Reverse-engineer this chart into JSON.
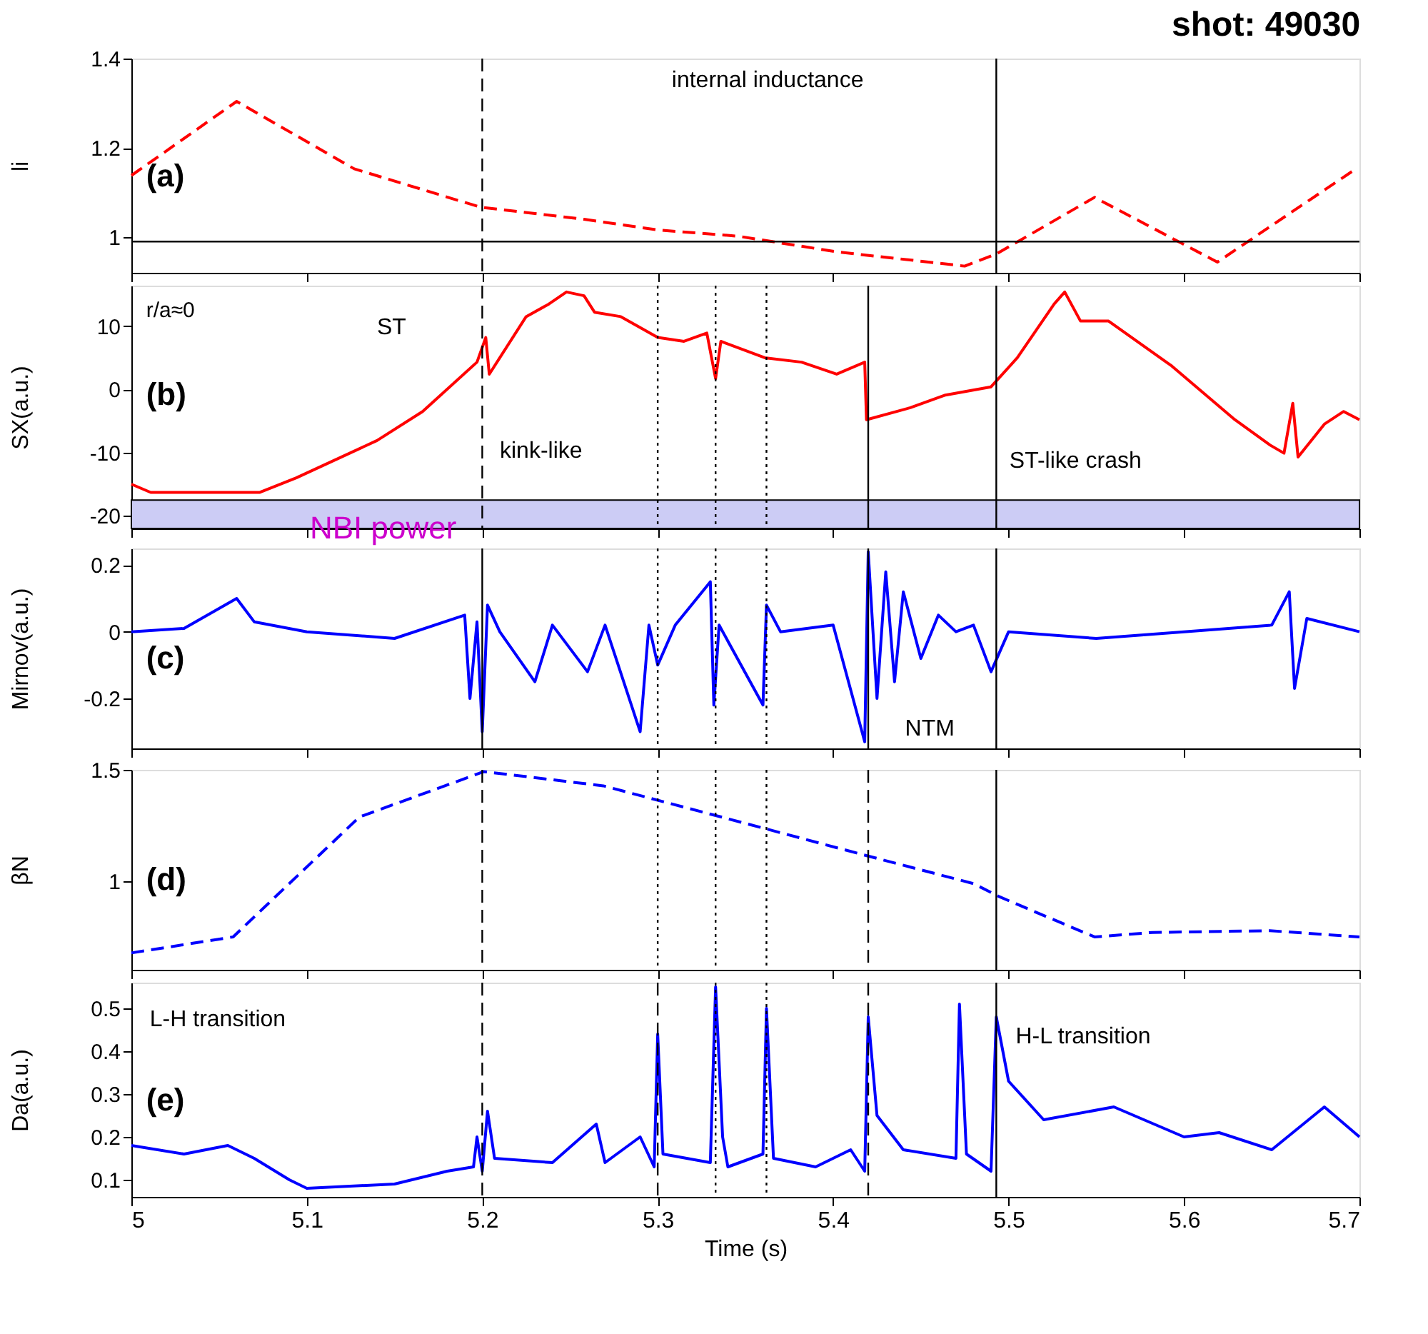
{
  "chart_data": [
    {
      "type": "line",
      "title": "shot: 49030",
      "ylabel": "li",
      "xlim": [
        5,
        5.7
      ],
      "xticks": [
        5,
        5.1,
        5.2,
        5.3,
        5.4,
        5.5,
        5.6,
        5.7
      ],
      "ylim": [
        0.92,
        1.4
      ],
      "yticks": [
        1,
        1.2,
        1.4
      ],
      "tick_labels": "y",
      "grid": false,
      "line_style": "dashed",
      "series": [
        {
          "color": "#ff0000",
          "x": [
            5.0,
            5.06,
            5.127,
            5.199,
            5.258,
            5.3,
            5.346,
            5.402,
            5.475,
            5.493,
            5.549,
            5.619,
            5.698
          ],
          "values": [
            1.138,
            1.304,
            1.153,
            1.067,
            1.04,
            1.016,
            1.002,
            0.967,
            0.935,
            0.962,
            1.089,
            0.944,
            1.153
          ]
        }
      ],
      "ref_lines": [
        {
          "axis": "y",
          "value": 0.99,
          "color": "#000000",
          "line_style": "solid"
        },
        {
          "axis": "x",
          "value": 5.2,
          "color": "#000000",
          "line_style": "dashed"
        },
        {
          "axis": "x",
          "value": 5.493,
          "color": "#000000",
          "line_style": "solid"
        }
      ],
      "annotations": [
        "(a)",
        "internal inductance"
      ]
    },
    {
      "type": "line",
      "ylabel": "SX(a.u.)",
      "xlim": [
        5,
        5.7
      ],
      "xticks": [
        5,
        5.1,
        5.2,
        5.3,
        5.4,
        5.5,
        5.6,
        5.7
      ],
      "ylim": [
        -22,
        16.4
      ],
      "yticks": [
        -20,
        -10,
        0,
        10
      ],
      "tick_labels": "y",
      "grid": false,
      "line_style": "solid",
      "series": [
        {
          "color": "#ff0000",
          "x": [
            5.0,
            5.011,
            5.073,
            5.094,
            5.14,
            5.166,
            5.197,
            5.202,
            5.204,
            5.225,
            5.238,
            5.248,
            5.258,
            5.264,
            5.279,
            5.3,
            5.315,
            5.328,
            5.333,
            5.336,
            5.361,
            5.382,
            5.402,
            5.418,
            5.419,
            5.444,
            5.464,
            5.49,
            5.505,
            5.526,
            5.532,
            5.541,
            5.557,
            5.593,
            5.629,
            5.649,
            5.657,
            5.662,
            5.665,
            5.68,
            5.691,
            5.7
          ],
          "values": [
            -15.0,
            -16.3,
            -16.3,
            -14.0,
            -8.1,
            -3.5,
            4.3,
            8.2,
            2.4,
            11.5,
            13.5,
            15.4,
            14.8,
            12.2,
            11.5,
            8.2,
            7.6,
            8.9,
            1.7,
            7.6,
            5.0,
            4.3,
            2.4,
            4.3,
            -4.8,
            -2.9,
            -0.9,
            0.4,
            5.0,
            13.5,
            15.4,
            10.8,
            10.8,
            3.7,
            -4.8,
            -8.8,
            -10.1,
            -2.2,
            -10.7,
            -5.5,
            -3.5,
            -4.8
          ]
        }
      ],
      "bands": [
        {
          "axis": "y",
          "from": -22,
          "to": -17.5,
          "color": "#ccccf5",
          "label": "NBI power"
        }
      ],
      "ref_lines": [
        {
          "axis": "x",
          "value": 5.2,
          "color": "#000000",
          "line_style": "dashed"
        },
        {
          "axis": "x",
          "value": 5.3,
          "color": "#000000",
          "line_style": "dotted"
        },
        {
          "axis": "x",
          "value": 5.333,
          "color": "#000000",
          "line_style": "dotted"
        },
        {
          "axis": "x",
          "value": 5.362,
          "color": "#000000",
          "line_style": "dotted"
        },
        {
          "axis": "x",
          "value": 5.42,
          "color": "#000000",
          "line_style": "solid"
        },
        {
          "axis": "x",
          "value": 5.493,
          "color": "#000000",
          "line_style": "solid"
        }
      ],
      "annotations": [
        "r/a≈0",
        "(b)",
        "ST",
        "kink-like",
        "ST-like crash"
      ]
    },
    {
      "type": "line",
      "ylabel": "Mirnov(a.u.)",
      "xlim": [
        5,
        5.7
      ],
      "xticks": [
        5,
        5.1,
        5.2,
        5.3,
        5.4,
        5.5,
        5.6,
        5.7
      ],
      "ylim": [
        -0.35,
        0.25
      ],
      "yticks": [
        -0.2,
        0,
        0.2
      ],
      "tick_labels": "y",
      "grid": false,
      "line_style": "solid",
      "series": [
        {
          "color": "#0000ff",
          "x": [
            5.0,
            5.03,
            5.05,
            5.06,
            5.07,
            5.1,
            5.15,
            5.19,
            5.193,
            5.197,
            5.2,
            5.203,
            5.21,
            5.23,
            5.24,
            5.26,
            5.27,
            5.29,
            5.295,
            5.3,
            5.31,
            5.33,
            5.332,
            5.335,
            5.36,
            5.362,
            5.37,
            5.4,
            5.418,
            5.42,
            5.425,
            5.43,
            5.435,
            5.44,
            5.45,
            5.46,
            5.47,
            5.48,
            5.49,
            5.5,
            5.55,
            5.6,
            5.65,
            5.66,
            5.663,
            5.67,
            5.7
          ],
          "values": [
            0.0,
            0.01,
            0.07,
            0.1,
            0.03,
            0.0,
            -0.02,
            0.05,
            -0.2,
            0.03,
            -0.3,
            0.08,
            0.0,
            -0.15,
            0.02,
            -0.12,
            0.02,
            -0.3,
            0.02,
            -0.1,
            0.02,
            0.15,
            -0.22,
            0.02,
            -0.22,
            0.08,
            0.0,
            0.02,
            -0.33,
            0.24,
            -0.2,
            0.18,
            -0.15,
            0.12,
            -0.08,
            0.05,
            0.0,
            0.02,
            -0.12,
            0.0,
            -0.02,
            0.0,
            0.02,
            0.12,
            -0.17,
            0.04,
            0.0
          ]
        }
      ],
      "ref_lines": [
        {
          "axis": "x",
          "value": 5.2,
          "color": "#000000",
          "line_style": "solid"
        },
        {
          "axis": "x",
          "value": 5.3,
          "color": "#000000",
          "line_style": "dotted"
        },
        {
          "axis": "x",
          "value": 5.333,
          "color": "#000000",
          "line_style": "dotted"
        },
        {
          "axis": "x",
          "value": 5.362,
          "color": "#000000",
          "line_style": "dotted"
        },
        {
          "axis": "x",
          "value": 5.42,
          "color": "#000000",
          "line_style": "solid"
        },
        {
          "axis": "x",
          "value": 5.493,
          "color": "#000000",
          "line_style": "solid"
        }
      ],
      "annotations": [
        "(c)",
        "NTM"
      ]
    },
    {
      "type": "line",
      "ylabel": "βN",
      "xlim": [
        5,
        5.7
      ],
      "xticks": [
        5,
        5.1,
        5.2,
        5.3,
        5.4,
        5.5,
        5.6,
        5.7
      ],
      "ylim": [
        0.6,
        1.5
      ],
      "yticks": [
        1,
        1.5
      ],
      "tick_labels": "y",
      "grid": false,
      "line_style": "dashed",
      "series": [
        {
          "color": "#0000ff",
          "x": [
            5.0,
            5.058,
            5.13,
            5.201,
            5.269,
            5.361,
            5.418,
            5.48,
            5.495,
            5.549,
            5.582,
            5.649,
            5.7
          ],
          "values": [
            0.676,
            0.748,
            1.288,
            1.492,
            1.428,
            1.236,
            1.116,
            0.988,
            0.928,
            0.748,
            0.768,
            0.776,
            0.748
          ]
        }
      ],
      "ref_lines": [
        {
          "axis": "x",
          "value": 5.2,
          "color": "#000000",
          "line_style": "dashed"
        },
        {
          "axis": "x",
          "value": 5.3,
          "color": "#000000",
          "line_style": "dotted"
        },
        {
          "axis": "x",
          "value": 5.333,
          "color": "#000000",
          "line_style": "dotted"
        },
        {
          "axis": "x",
          "value": 5.362,
          "color": "#000000",
          "line_style": "dotted"
        },
        {
          "axis": "x",
          "value": 5.42,
          "color": "#000000",
          "line_style": "dashed"
        },
        {
          "axis": "x",
          "value": 5.493,
          "color": "#000000",
          "line_style": "solid"
        }
      ],
      "annotations": [
        "(d)"
      ]
    },
    {
      "type": "line",
      "xlabel": "Time (s)",
      "ylabel": "Da(a.u.)",
      "xlim": [
        5,
        5.7
      ],
      "xticks": [
        5,
        5.1,
        5.2,
        5.3,
        5.4,
        5.5,
        5.6,
        5.7
      ],
      "ylim": [
        0.06,
        0.56
      ],
      "yticks": [
        0.1,
        0.2,
        0.3,
        0.4,
        0.5
      ],
      "grid": false,
      "line_style": "solid",
      "series": [
        {
          "color": "#0000ff",
          "x": [
            5.0,
            5.03,
            5.055,
            5.07,
            5.09,
            5.1,
            5.15,
            5.18,
            5.195,
            5.197,
            5.2,
            5.203,
            5.207,
            5.24,
            5.265,
            5.27,
            5.29,
            5.298,
            5.3,
            5.303,
            5.33,
            5.333,
            5.337,
            5.34,
            5.36,
            5.362,
            5.366,
            5.39,
            5.41,
            5.418,
            5.42,
            5.425,
            5.44,
            5.47,
            5.472,
            5.476,
            5.49,
            5.493,
            5.5,
            5.52,
            5.56,
            5.6,
            5.62,
            5.65,
            5.68,
            5.7
          ],
          "values": [
            0.18,
            0.16,
            0.18,
            0.15,
            0.1,
            0.08,
            0.09,
            0.12,
            0.13,
            0.2,
            0.12,
            0.26,
            0.15,
            0.14,
            0.23,
            0.14,
            0.2,
            0.13,
            0.44,
            0.16,
            0.14,
            0.55,
            0.2,
            0.13,
            0.16,
            0.5,
            0.15,
            0.13,
            0.17,
            0.12,
            0.48,
            0.25,
            0.17,
            0.15,
            0.51,
            0.16,
            0.12,
            0.48,
            0.33,
            0.24,
            0.27,
            0.2,
            0.21,
            0.17,
            0.27,
            0.2
          ]
        }
      ],
      "ref_lines": [
        {
          "axis": "x",
          "value": 5.2,
          "color": "#000000",
          "line_style": "dashed"
        },
        {
          "axis": "x",
          "value": 5.3,
          "color": "#000000",
          "line_style": "dashed"
        },
        {
          "axis": "x",
          "value": 5.333,
          "color": "#000000",
          "line_style": "dotted"
        },
        {
          "axis": "x",
          "value": 5.362,
          "color": "#000000",
          "line_style": "dotted"
        },
        {
          "axis": "x",
          "value": 5.42,
          "color": "#000000",
          "line_style": "dashed"
        },
        {
          "axis": "x",
          "value": 5.493,
          "color": "#000000",
          "line_style": "solid"
        }
      ],
      "annotations": [
        "(e)",
        "L-H transition",
        "H-L transition"
      ]
    }
  ]
}
